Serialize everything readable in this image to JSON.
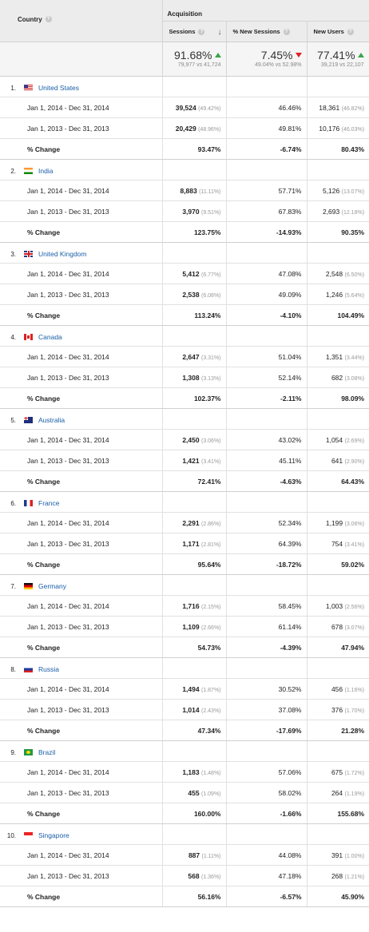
{
  "header": {
    "country_label": "Country",
    "group_label": "Acquisition",
    "columns": [
      "Sessions",
      "% New Sessions",
      "New Users"
    ]
  },
  "totals": {
    "sessions": {
      "value": "91.68%",
      "sub": "79,977 vs 41,724",
      "trend": "up"
    },
    "new_sessions": {
      "value": "7.45%",
      "sub": "49.04% vs 52.98%",
      "trend": "down"
    },
    "new_users": {
      "value": "77.41%",
      "sub": "39,219 vs 22,107",
      "trend": "up"
    }
  },
  "period_a": "Jan 1, 2014 - Dec 31, 2014",
  "period_b": "Jan 1, 2013 - Dec 31, 2013",
  "change_label": "% Change",
  "rows": [
    {
      "num": "1.",
      "country": "United States",
      "flag": "us",
      "a": {
        "sessions": "39,524",
        "sessions_pct": "(49.42%)",
        "new_sessions": "46.46%",
        "new_users": "18,361",
        "new_users_pct": "(46.82%)"
      },
      "b": {
        "sessions": "20,429",
        "sessions_pct": "(48.96%)",
        "new_sessions": "49.81%",
        "new_users": "10,176",
        "new_users_pct": "(46.03%)"
      },
      "change": {
        "sessions": "93.47%",
        "new_sessions": "-6.74%",
        "new_users": "80.43%"
      }
    },
    {
      "num": "2.",
      "country": "India",
      "flag": "in",
      "a": {
        "sessions": "8,883",
        "sessions_pct": "(11.11%)",
        "new_sessions": "57.71%",
        "new_users": "5,126",
        "new_users_pct": "(13.07%)"
      },
      "b": {
        "sessions": "3,970",
        "sessions_pct": "(9.51%)",
        "new_sessions": "67.83%",
        "new_users": "2,693",
        "new_users_pct": "(12.18%)"
      },
      "change": {
        "sessions": "123.75%",
        "new_sessions": "-14.93%",
        "new_users": "90.35%"
      }
    },
    {
      "num": "3.",
      "country": "United Kingdom",
      "flag": "uk",
      "a": {
        "sessions": "5,412",
        "sessions_pct": "(6.77%)",
        "new_sessions": "47.08%",
        "new_users": "2,548",
        "new_users_pct": "(6.50%)"
      },
      "b": {
        "sessions": "2,538",
        "sessions_pct": "(6.08%)",
        "new_sessions": "49.09%",
        "new_users": "1,246",
        "new_users_pct": "(5.64%)"
      },
      "change": {
        "sessions": "113.24%",
        "new_sessions": "-4.10%",
        "new_users": "104.49%"
      }
    },
    {
      "num": "4.",
      "country": "Canada",
      "flag": "ca",
      "a": {
        "sessions": "2,647",
        "sessions_pct": "(3.31%)",
        "new_sessions": "51.04%",
        "new_users": "1,351",
        "new_users_pct": "(3.44%)"
      },
      "b": {
        "sessions": "1,308",
        "sessions_pct": "(3.13%)",
        "new_sessions": "52.14%",
        "new_users": "682",
        "new_users_pct": "(3.08%)"
      },
      "change": {
        "sessions": "102.37%",
        "new_sessions": "-2.11%",
        "new_users": "98.09%"
      }
    },
    {
      "num": "5.",
      "country": "Australia",
      "flag": "au",
      "a": {
        "sessions": "2,450",
        "sessions_pct": "(3.06%)",
        "new_sessions": "43.02%",
        "new_users": "1,054",
        "new_users_pct": "(2.69%)"
      },
      "b": {
        "sessions": "1,421",
        "sessions_pct": "(3.41%)",
        "new_sessions": "45.11%",
        "new_users": "641",
        "new_users_pct": "(2.90%)"
      },
      "change": {
        "sessions": "72.41%",
        "new_sessions": "-4.63%",
        "new_users": "64.43%"
      }
    },
    {
      "num": "6.",
      "country": "France",
      "flag": "fr",
      "a": {
        "sessions": "2,291",
        "sessions_pct": "(2.86%)",
        "new_sessions": "52.34%",
        "new_users": "1,199",
        "new_users_pct": "(3.06%)"
      },
      "b": {
        "sessions": "1,171",
        "sessions_pct": "(2.81%)",
        "new_sessions": "64.39%",
        "new_users": "754",
        "new_users_pct": "(3.41%)"
      },
      "change": {
        "sessions": "95.64%",
        "new_sessions": "-18.72%",
        "new_users": "59.02%"
      }
    },
    {
      "num": "7.",
      "country": "Germany",
      "flag": "de",
      "a": {
        "sessions": "1,716",
        "sessions_pct": "(2.15%)",
        "new_sessions": "58.45%",
        "new_users": "1,003",
        "new_users_pct": "(2.56%)"
      },
      "b": {
        "sessions": "1,109",
        "sessions_pct": "(2.66%)",
        "new_sessions": "61.14%",
        "new_users": "678",
        "new_users_pct": "(3.07%)"
      },
      "change": {
        "sessions": "54.73%",
        "new_sessions": "-4.39%",
        "new_users": "47.94%"
      }
    },
    {
      "num": "8.",
      "country": "Russia",
      "flag": "ru",
      "a": {
        "sessions": "1,494",
        "sessions_pct": "(1.87%)",
        "new_sessions": "30.52%",
        "new_users": "456",
        "new_users_pct": "(1.16%)"
      },
      "b": {
        "sessions": "1,014",
        "sessions_pct": "(2.43%)",
        "new_sessions": "37.08%",
        "new_users": "376",
        "new_users_pct": "(1.70%)"
      },
      "change": {
        "sessions": "47.34%",
        "new_sessions": "-17.69%",
        "new_users": "21.28%"
      }
    },
    {
      "num": "9.",
      "country": "Brazil",
      "flag": "br",
      "a": {
        "sessions": "1,183",
        "sessions_pct": "(1.48%)",
        "new_sessions": "57.06%",
        "new_users": "675",
        "new_users_pct": "(1.72%)"
      },
      "b": {
        "sessions": "455",
        "sessions_pct": "(1.09%)",
        "new_sessions": "58.02%",
        "new_users": "264",
        "new_users_pct": "(1.19%)"
      },
      "change": {
        "sessions": "160.00%",
        "new_sessions": "-1.66%",
        "new_users": "155.68%"
      }
    },
    {
      "num": "10.",
      "country": "Singapore",
      "flag": "sg",
      "a": {
        "sessions": "887",
        "sessions_pct": "(1.11%)",
        "new_sessions": "44.08%",
        "new_users": "391",
        "new_users_pct": "(1.00%)"
      },
      "b": {
        "sessions": "568",
        "sessions_pct": "(1.36%)",
        "new_sessions": "47.18%",
        "new_users": "268",
        "new_users_pct": "(1.21%)"
      },
      "change": {
        "sessions": "56.16%",
        "new_sessions": "-6.57%",
        "new_users": "45.90%"
      }
    }
  ]
}
